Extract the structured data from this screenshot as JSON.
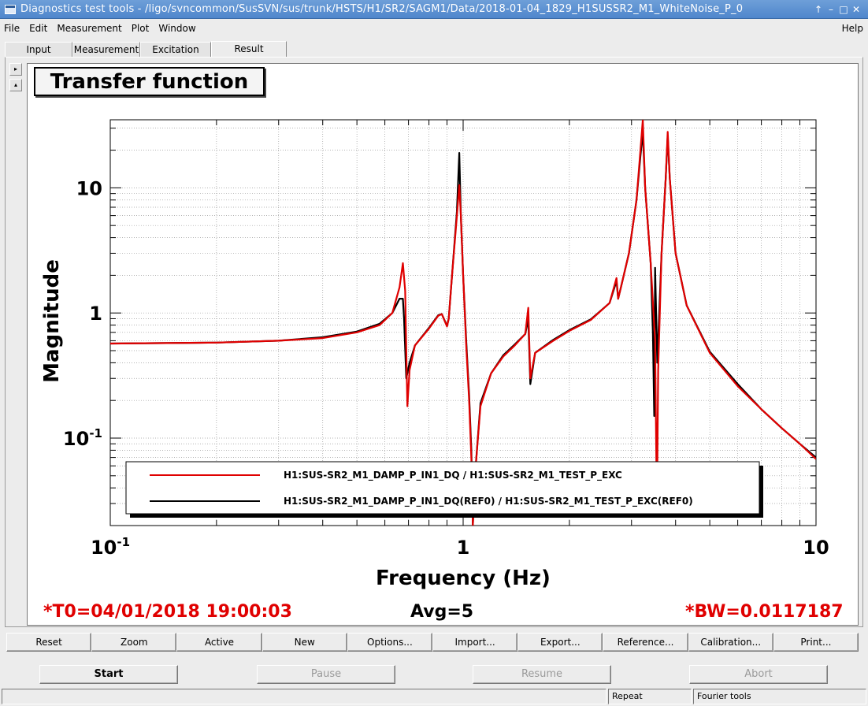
{
  "window": {
    "title": "Diagnostics test tools - /ligo/svncommon/SusSVN/sus/trunk/HSTS/H1/SR2/SAGM1/Data/2018-01-04_1829_H1SUSSR2_M1_WhiteNoise_P_0",
    "controls": [
      "↑",
      "–",
      "□",
      "✕"
    ]
  },
  "menu": {
    "items": [
      "File",
      "Edit",
      "Measurement",
      "Plot",
      "Window"
    ],
    "help": "Help"
  },
  "tabs": [
    {
      "label": "Input",
      "active": false
    },
    {
      "label": "Measurement",
      "active": false
    },
    {
      "label": "Excitation",
      "active": false
    },
    {
      "label": "Result",
      "active": true
    }
  ],
  "side_buttons": [
    "▸",
    "▴"
  ],
  "plot": {
    "title": "Transfer function",
    "xlabel": "Frequency (Hz)",
    "ylabel": "Magnitude"
  },
  "chart_data": {
    "type": "line",
    "title": "Transfer function",
    "xlabel": "Frequency (Hz)",
    "ylabel": "Magnitude",
    "xscale": "log",
    "yscale": "log",
    "xlim": [
      0.1,
      10
    ],
    "ylim": [
      0.02,
      35
    ],
    "x_ticks": [
      {
        "value": 0.1,
        "base": "10",
        "exp": "-1"
      },
      {
        "value": 1,
        "base": "1",
        "exp": ""
      },
      {
        "value": 10,
        "base": "10",
        "exp": ""
      }
    ],
    "y_ticks": [
      {
        "value": 0.1,
        "base": "10",
        "exp": "-1"
      },
      {
        "value": 1,
        "base": "1",
        "exp": ""
      },
      {
        "value": 10,
        "base": "10",
        "exp": ""
      }
    ],
    "grid": true,
    "legend_position": "bottom-left",
    "series": [
      {
        "name": "H1:SUS-SR2_M1_DAMP_P_IN1_DQ / H1:SUS-SR2_M1_TEST_P_EXC",
        "color": "#e00000",
        "points": [
          [
            0.1,
            0.57
          ],
          [
            0.2,
            0.58
          ],
          [
            0.3,
            0.6
          ],
          [
            0.4,
            0.63
          ],
          [
            0.5,
            0.7
          ],
          [
            0.58,
            0.8
          ],
          [
            0.63,
            1.0
          ],
          [
            0.66,
            1.6
          ],
          [
            0.675,
            2.5
          ],
          [
            0.685,
            1.5
          ],
          [
            0.69,
            0.5
          ],
          [
            0.695,
            0.18
          ],
          [
            0.705,
            0.35
          ],
          [
            0.73,
            0.55
          ],
          [
            0.8,
            0.75
          ],
          [
            0.85,
            0.95
          ],
          [
            0.87,
            0.98
          ],
          [
            0.9,
            0.78
          ],
          [
            0.91,
            0.9
          ],
          [
            0.93,
            2.0
          ],
          [
            0.96,
            6.0
          ],
          [
            0.975,
            10.5
          ],
          [
            0.985,
            6.0
          ],
          [
            1.0,
            2.0
          ],
          [
            1.02,
            0.55
          ],
          [
            1.04,
            0.2
          ],
          [
            1.055,
            0.07
          ],
          [
            1.065,
            0.02
          ],
          [
            1.08,
            0.05
          ],
          [
            1.12,
            0.18
          ],
          [
            1.2,
            0.33
          ],
          [
            1.3,
            0.45
          ],
          [
            1.4,
            0.55
          ],
          [
            1.5,
            0.68
          ],
          [
            1.53,
            1.1
          ],
          [
            1.55,
            0.3
          ],
          [
            1.6,
            0.48
          ],
          [
            1.8,
            0.6
          ],
          [
            2.0,
            0.72
          ],
          [
            2.3,
            0.88
          ],
          [
            2.6,
            1.2
          ],
          [
            2.72,
            1.9
          ],
          [
            2.75,
            1.3
          ],
          [
            2.8,
            1.6
          ],
          [
            2.95,
            3.0
          ],
          [
            3.1,
            8.0
          ],
          [
            3.18,
            20.0
          ],
          [
            3.23,
            35.0
          ],
          [
            3.28,
            10.0
          ],
          [
            3.4,
            2.5
          ],
          [
            3.5,
            0.6
          ],
          [
            3.54,
            0.025
          ],
          [
            3.57,
            0.35
          ],
          [
            3.65,
            3.0
          ],
          [
            3.75,
            12.0
          ],
          [
            3.8,
            28.0
          ],
          [
            3.85,
            12.0
          ],
          [
            4.0,
            3.0
          ],
          [
            4.3,
            1.15
          ],
          [
            5.0,
            0.48
          ],
          [
            6.0,
            0.26
          ],
          [
            7.0,
            0.17
          ],
          [
            8.0,
            0.12
          ],
          [
            9.0,
            0.09
          ],
          [
            10.0,
            0.068
          ]
        ]
      },
      {
        "name": "H1:SUS-SR2_M1_DAMP_P_IN1_DQ(REF0) / H1:SUS-SR2_M1_TEST_P_EXC(REF0)",
        "color": "#000000",
        "points": [
          [
            0.1,
            0.57
          ],
          [
            0.2,
            0.58
          ],
          [
            0.3,
            0.6
          ],
          [
            0.4,
            0.64
          ],
          [
            0.5,
            0.71
          ],
          [
            0.58,
            0.82
          ],
          [
            0.63,
            1.0
          ],
          [
            0.66,
            1.3
          ],
          [
            0.675,
            1.3
          ],
          [
            0.68,
            0.9
          ],
          [
            0.69,
            0.3
          ],
          [
            0.705,
            0.4
          ],
          [
            0.73,
            0.55
          ],
          [
            0.8,
            0.76
          ],
          [
            0.85,
            0.96
          ],
          [
            0.87,
            0.98
          ],
          [
            0.9,
            0.79
          ],
          [
            0.91,
            0.9
          ],
          [
            0.93,
            2.0
          ],
          [
            0.96,
            6.5
          ],
          [
            0.975,
            19.0
          ],
          [
            0.985,
            6.0
          ],
          [
            1.0,
            2.0
          ],
          [
            1.02,
            0.6
          ],
          [
            1.04,
            0.22
          ],
          [
            1.055,
            0.08
          ],
          [
            1.065,
            0.02
          ],
          [
            1.08,
            0.05
          ],
          [
            1.12,
            0.19
          ],
          [
            1.2,
            0.33
          ],
          [
            1.3,
            0.46
          ],
          [
            1.4,
            0.56
          ],
          [
            1.5,
            0.68
          ],
          [
            1.53,
            0.9
          ],
          [
            1.55,
            0.27
          ],
          [
            1.6,
            0.48
          ],
          [
            1.8,
            0.61
          ],
          [
            2.0,
            0.73
          ],
          [
            2.3,
            0.89
          ],
          [
            2.6,
            1.2
          ],
          [
            2.72,
            1.8
          ],
          [
            2.75,
            1.3
          ],
          [
            2.8,
            1.6
          ],
          [
            2.95,
            3.0
          ],
          [
            3.1,
            8.0
          ],
          [
            3.18,
            18.0
          ],
          [
            3.23,
            28.0
          ],
          [
            3.28,
            10.0
          ],
          [
            3.4,
            2.5
          ],
          [
            3.45,
            0.7
          ],
          [
            3.48,
            0.15
          ],
          [
            3.5,
            2.3
          ],
          [
            3.55,
            0.4
          ],
          [
            3.65,
            3.0
          ],
          [
            3.75,
            12.0
          ],
          [
            3.8,
            26.0
          ],
          [
            3.85,
            12.0
          ],
          [
            4.0,
            3.0
          ],
          [
            4.3,
            1.15
          ],
          [
            5.0,
            0.49
          ],
          [
            6.0,
            0.27
          ],
          [
            7.0,
            0.17
          ],
          [
            8.0,
            0.12
          ],
          [
            9.0,
            0.09
          ],
          [
            10.0,
            0.07
          ]
        ]
      }
    ]
  },
  "status": {
    "t0": "*T0=04/01/2018 19:00:03",
    "avg": "Avg=5",
    "bw": "*BW=0.0117187"
  },
  "toolbar": [
    "Reset",
    "Zoom",
    "Active",
    "New",
    "Options...",
    "Import...",
    "Export...",
    "Reference...",
    "Calibration...",
    "Print..."
  ],
  "controls": {
    "start": "Start",
    "pause": "Pause",
    "resume": "Resume",
    "abort": "Abort"
  },
  "statusbar": {
    "repeat": "Repeat",
    "fourier": "Fourier tools"
  }
}
